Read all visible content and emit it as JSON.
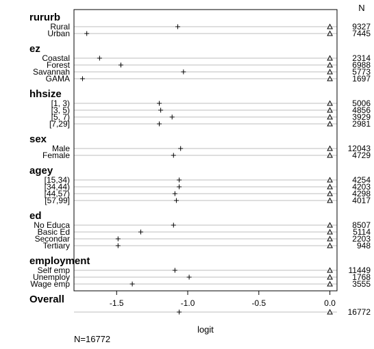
{
  "chart_data": {
    "type": "dot",
    "xlabel": "logit",
    "ylabel": "",
    "xlim": [
      -1.8,
      0.05
    ],
    "x_ticks": [
      -1.5,
      -1.0,
      -0.5,
      0.0
    ],
    "x_tick_labels": [
      "-1.5",
      "-1.0",
      "-0.5",
      "0.0"
    ],
    "n_header": "N",
    "footnote": "N=16772",
    "grid": "horizontal-row-lines",
    "markers": {
      "estimate": "+",
      "reference": "triangle"
    },
    "groups": [
      {
        "name": "rururb",
        "items": [
          {
            "label": "Rural",
            "value": -1.07,
            "ref": 0.0,
            "n": "9327"
          },
          {
            "label": "Urban",
            "value": -1.71,
            "ref": 0.0,
            "n": "7445"
          }
        ]
      },
      {
        "name": "ez",
        "items": [
          {
            "label": "Coastal",
            "value": -1.62,
            "ref": 0.0,
            "n": "2314"
          },
          {
            "label": "Forest",
            "value": -1.47,
            "ref": 0.0,
            "n": "6988"
          },
          {
            "label": "Savannah",
            "value": -1.03,
            "ref": 0.0,
            "n": "5773"
          },
          {
            "label": "GAMA",
            "value": -1.74,
            "ref": 0.0,
            "n": "1697"
          }
        ]
      },
      {
        "name": "hhsize",
        "items": [
          {
            "label": "[1, 3)",
            "value": -1.2,
            "ref": 0.0,
            "n": "5006"
          },
          {
            "label": "[3, 5)",
            "value": -1.19,
            "ref": 0.0,
            "n": "4856"
          },
          {
            "label": "[5, 7)",
            "value": -1.11,
            "ref": 0.0,
            "n": "3929"
          },
          {
            "label": "[7,29]",
            "value": -1.2,
            "ref": 0.0,
            "n": "2981"
          }
        ]
      },
      {
        "name": "sex",
        "items": [
          {
            "label": "Male",
            "value": -1.05,
            "ref": 0.0,
            "n": "12043"
          },
          {
            "label": "Female",
            "value": -1.1,
            "ref": 0.0,
            "n": "4729"
          }
        ]
      },
      {
        "name": "agey",
        "items": [
          {
            "label": "[15,34)",
            "value": -1.06,
            "ref": 0.0,
            "n": "4254"
          },
          {
            "label": "[34,44)",
            "value": -1.06,
            "ref": 0.0,
            "n": "4203"
          },
          {
            "label": "[44,57)",
            "value": -1.09,
            "ref": 0.0,
            "n": "4298"
          },
          {
            "label": "[57,99]",
            "value": -1.08,
            "ref": 0.0,
            "n": "4017"
          }
        ]
      },
      {
        "name": "ed",
        "items": [
          {
            "label": "No Educa",
            "value": -1.1,
            "ref": 0.0,
            "n": "8507"
          },
          {
            "label": "Basic Ed",
            "value": -1.33,
            "ref": 0.0,
            "n": "5114"
          },
          {
            "label": "Secondar",
            "value": -1.49,
            "ref": 0.0,
            "n": "2203"
          },
          {
            "label": "Tertiary",
            "value": -1.49,
            "ref": 0.0,
            "n": "948"
          }
        ]
      },
      {
        "name": "employment",
        "items": [
          {
            "label": "Self emp",
            "value": -1.09,
            "ref": 0.0,
            "n": "11449"
          },
          {
            "label": "Unemploy",
            "value": -0.99,
            "ref": 0.0,
            "n": "1768"
          },
          {
            "label": "Wage emp",
            "value": -1.39,
            "ref": 0.0,
            "n": "3555"
          }
        ]
      },
      {
        "name": "Overall",
        "items": [
          {
            "label": "",
            "value": -1.06,
            "ref": 0.0,
            "n": "16772"
          }
        ]
      }
    ]
  }
}
